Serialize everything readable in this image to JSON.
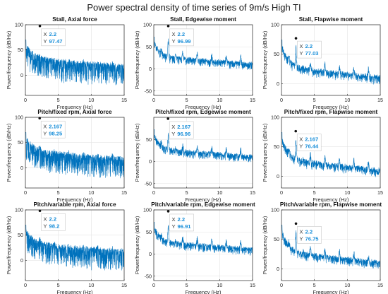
{
  "figure": {
    "title": "Power spectral density of time series of 9m/s High TI"
  },
  "chart_data": [
    {
      "type": "line",
      "title": "Stall, Axial force",
      "xlabel": "Frequency (Hz)",
      "ylabel": "Power/frequency (dB/Hz)",
      "xlim": [
        0,
        15
      ],
      "ylim": [
        -40,
        100
      ],
      "xticks": [
        0,
        5,
        10,
        15
      ],
      "yticks": [
        0,
        50,
        100
      ],
      "grid": true,
      "color": "#0072bd",
      "profile": "axial",
      "datatip": {
        "x": 2.2,
        "y": 97.47,
        "x_label": "X",
        "y_label": "Y",
        "x_text": "2.2",
        "y_text": "97.47"
      }
    },
    {
      "type": "line",
      "title": "Stall, Edgewise moment",
      "xlabel": "Frequency (Hz)",
      "ylabel": "Power/frequency (dB/Hz)",
      "xlim": [
        0,
        15
      ],
      "ylim": [
        -60,
        100
      ],
      "xticks": [
        0,
        5,
        10,
        15
      ],
      "yticks": [
        -50,
        0,
        50,
        100
      ],
      "grid": true,
      "color": "#0072bd",
      "profile": "edgewise",
      "datatip": {
        "x": 2.2,
        "y": 96.99,
        "x_label": "X",
        "y_label": "Y",
        "x_text": "2.2",
        "y_text": "96.99"
      }
    },
    {
      "type": "line",
      "title": "Stall, Flapwise moment",
      "xlabel": "Frequency (Hz)",
      "ylabel": "Power/frequency (dB/Hz)",
      "xlim": [
        0,
        15
      ],
      "ylim": [
        -20,
        100
      ],
      "xticks": [
        0,
        5,
        10,
        15
      ],
      "yticks": [
        0,
        50,
        100
      ],
      "grid": true,
      "color": "#0072bd",
      "profile": "flapwise",
      "datatip": {
        "x": 2.2,
        "y": 77.03,
        "x_label": "X",
        "y_label": "Y",
        "x_text": "2.2",
        "y_text": "77.03"
      }
    },
    {
      "type": "line",
      "title": "Pitch/fixed rpm, Axial force",
      "xlabel": "Frequency (Hz)",
      "ylabel": "Power/frequency (dB/Hz)",
      "xlim": [
        0,
        15
      ],
      "ylim": [
        -40,
        100
      ],
      "xticks": [
        0,
        5,
        10,
        15
      ],
      "yticks": [
        0,
        50,
        100
      ],
      "grid": true,
      "color": "#0072bd",
      "profile": "axial",
      "datatip": {
        "x": 2.167,
        "y": 98.25,
        "x_label": "X",
        "y_label": "Y",
        "x_text": "2.167",
        "y_text": "98.25"
      }
    },
    {
      "type": "line",
      "title": "Pitch/fixed rpm, Edgewise moment",
      "xlabel": "Frequency (Hz)",
      "ylabel": "Power/frequency (dB/Hz)",
      "xlim": [
        0,
        15
      ],
      "ylim": [
        -60,
        100
      ],
      "xticks": [
        0,
        5,
        10,
        15
      ],
      "yticks": [
        -50,
        0,
        50
      ],
      "grid": true,
      "color": "#0072bd",
      "profile": "edgewise",
      "datatip": {
        "x": 2.167,
        "y": 96.96,
        "x_label": "X",
        "y_label": "Y",
        "x_text": "2.167",
        "y_text": "96.96"
      }
    },
    {
      "type": "line",
      "title": "Pitch/fixed rpm, Flapwise moment",
      "xlabel": "Frequency (Hz)",
      "ylabel": "Power/frequency (dB/Hz)",
      "xlim": [
        0,
        15
      ],
      "ylim": [
        -20,
        100
      ],
      "xticks": [
        0,
        5,
        10,
        15
      ],
      "yticks": [
        0,
        50,
        100
      ],
      "grid": true,
      "color": "#0072bd",
      "profile": "flapwise",
      "datatip": {
        "x": 2.167,
        "y": 76.44,
        "x_label": "X",
        "y_label": "Y",
        "x_text": "2.167",
        "y_text": "76.44"
      }
    },
    {
      "type": "line",
      "title": "Pitch/variable rpm, Axial force",
      "xlabel": "Frequency (Hz)",
      "ylabel": "Power/frequency (dB/Hz)",
      "xlim": [
        0,
        15
      ],
      "ylim": [
        -40,
        100
      ],
      "xticks": [
        0,
        5,
        10,
        15
      ],
      "yticks": [
        0,
        50,
        100
      ],
      "grid": true,
      "color": "#0072bd",
      "profile": "axial",
      "datatip": {
        "x": 2.2,
        "y": 98.2,
        "x_label": "X",
        "y_label": "Y",
        "x_text": "2.2",
        "y_text": "98.2"
      }
    },
    {
      "type": "line",
      "title": "Pitch/variable rpm, Edgewise moment",
      "xlabel": "Frequency (Hz)",
      "ylabel": "Power/frequency (dB/Hz)",
      "xlim": [
        0,
        15
      ],
      "ylim": [
        -60,
        100
      ],
      "xticks": [
        0,
        5,
        10,
        15
      ],
      "yticks": [
        -50,
        0,
        50,
        100
      ],
      "grid": true,
      "color": "#0072bd",
      "profile": "edgewise",
      "datatip": {
        "x": 2.2,
        "y": 96.91,
        "x_label": "X",
        "y_label": "Y",
        "x_text": "2.2",
        "y_text": "96.91"
      }
    },
    {
      "type": "line",
      "title": "Pitch/variable rpm, Flapwise moment",
      "xlabel": "Frequency (Hz)",
      "ylabel": "Power/frequency (dB/Hz)",
      "xlim": [
        0,
        15
      ],
      "ylim": [
        -20,
        100
      ],
      "xticks": [
        0,
        5,
        10,
        15
      ],
      "yticks": [
        0,
        50,
        100
      ],
      "grid": true,
      "color": "#0072bd",
      "profile": "flapwise",
      "datatip": {
        "x": 2.2,
        "y": 76.75,
        "x_label": "X",
        "y_label": "Y",
        "x_text": "2.2",
        "y_text": "76.75"
      }
    }
  ]
}
